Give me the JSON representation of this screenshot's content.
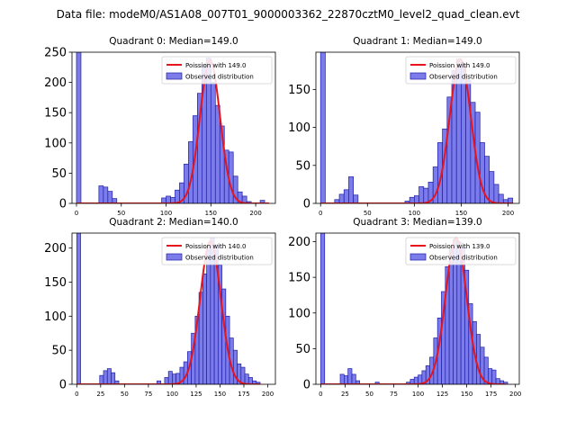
{
  "figure": {
    "title": "Data file: modeM0/AS1A08_007T01_9000003362_22870cztM0_level2_quad_clean.evt"
  },
  "colors": {
    "bar_fill": "#7b7bea",
    "bar_edge": "#1f1fa8",
    "poisson_line": "#e8141c",
    "axes": "#000000"
  },
  "chart_data": [
    {
      "type": "bar",
      "title": "Quadrant 0: Median=149.0",
      "xlim": [
        -5,
        222
      ],
      "ylim": [
        0,
        250
      ],
      "xticks": [
        0,
        50,
        100,
        150,
        200
      ],
      "yticks": [
        0,
        50,
        100,
        150,
        200,
        250
      ],
      "bin_width": 5,
      "bins": [
        [
          0,
          250
        ],
        [
          25,
          29
        ],
        [
          30,
          27
        ],
        [
          35,
          20
        ],
        [
          40,
          8
        ],
        [
          95,
          9
        ],
        [
          100,
          12
        ],
        [
          105,
          10
        ],
        [
          110,
          22
        ],
        [
          115,
          34
        ],
        [
          120,
          65
        ],
        [
          125,
          102
        ],
        [
          130,
          145
        ],
        [
          135,
          182
        ],
        [
          140,
          230
        ],
        [
          145,
          240
        ],
        [
          150,
          200
        ],
        [
          155,
          162
        ],
        [
          160,
          128
        ],
        [
          165,
          88
        ],
        [
          170,
          85
        ],
        [
          175,
          45
        ],
        [
          180,
          19
        ],
        [
          185,
          12
        ],
        [
          190,
          3
        ],
        [
          205,
          5
        ]
      ],
      "poisson": {
        "mean": 149,
        "peak": 237,
        "sigma": 11.2,
        "x_from": 0,
        "x_to": 215
      },
      "legend": {
        "line": "Poission with 149.0",
        "bars": "Observed distribution",
        "position": "upper right"
      }
    },
    {
      "type": "bar",
      "title": "Quadrant 1: Median=149.0",
      "xlim": [
        -5,
        212
      ],
      "ylim": [
        0,
        199
      ],
      "xticks": [
        0,
        50,
        100,
        150,
        200
      ],
      "yticks": [
        0,
        50,
        100,
        150
      ],
      "bin_width": 5,
      "bins": [
        [
          0,
          199
        ],
        [
          15,
          5
        ],
        [
          20,
          12
        ],
        [
          25,
          18
        ],
        [
          30,
          35
        ],
        [
          35,
          11
        ],
        [
          90,
          3
        ],
        [
          95,
          8
        ],
        [
          100,
          10
        ],
        [
          105,
          22
        ],
        [
          110,
          20
        ],
        [
          115,
          28
        ],
        [
          120,
          48
        ],
        [
          125,
          80
        ],
        [
          130,
          98
        ],
        [
          135,
          140
        ],
        [
          140,
          175
        ],
        [
          145,
          190
        ],
        [
          150,
          183
        ],
        [
          155,
          162
        ],
        [
          160,
          133
        ],
        [
          165,
          120
        ],
        [
          170,
          80
        ],
        [
          175,
          62
        ],
        [
          180,
          42
        ],
        [
          185,
          25
        ],
        [
          190,
          12
        ],
        [
          195,
          5
        ],
        [
          200,
          7
        ]
      ],
      "poisson": {
        "mean": 149,
        "peak": 190,
        "sigma": 11.2,
        "x_from": 0,
        "x_to": 205
      },
      "legend": {
        "line": "Poission with 149.0",
        "bars": "Observed distribution",
        "position": "upper right"
      }
    },
    {
      "type": "bar",
      "title": "Quadrant 2: Median=140.0",
      "xlim": [
        -5,
        208
      ],
      "ylim": [
        0,
        222
      ],
      "xticks": [
        0,
        25,
        50,
        75,
        100,
        125,
        150,
        175,
        200
      ],
      "yticks": [
        0,
        50,
        100,
        150,
        200
      ],
      "bin_width": 4,
      "bins": [
        [
          0,
          222
        ],
        [
          24,
          13
        ],
        [
          28,
          20
        ],
        [
          32,
          23
        ],
        [
          36,
          17
        ],
        [
          40,
          5
        ],
        [
          84,
          5
        ],
        [
          92,
          10
        ],
        [
          96,
          19
        ],
        [
          100,
          15
        ],
        [
          104,
          16
        ],
        [
          108,
          25
        ],
        [
          112,
          33
        ],
        [
          116,
          48
        ],
        [
          120,
          75
        ],
        [
          124,
          100
        ],
        [
          128,
          135
        ],
        [
          132,
          162
        ],
        [
          136,
          198
        ],
        [
          140,
          215
        ],
        [
          144,
          205
        ],
        [
          148,
          175
        ],
        [
          152,
          140
        ],
        [
          156,
          100
        ],
        [
          160,
          68
        ],
        [
          164,
          50
        ],
        [
          168,
          30
        ],
        [
          172,
          25
        ],
        [
          176,
          15
        ],
        [
          180,
          10
        ],
        [
          184,
          5
        ],
        [
          188,
          3
        ]
      ],
      "poisson": {
        "mean": 140,
        "peak": 210,
        "sigma": 10.8,
        "x_from": 0,
        "x_to": 192
      },
      "legend": {
        "line": "Poission with 140.0",
        "bars": "Observed distribution",
        "position": "upper right"
      }
    },
    {
      "type": "bar",
      "title": "Quadrant 3: Median=139.0",
      "xlim": [
        -5,
        204
      ],
      "ylim": [
        0,
        212
      ],
      "xticks": [
        0,
        25,
        50,
        75,
        100,
        125,
        150,
        175,
        200
      ],
      "yticks": [
        0,
        50,
        100,
        150,
        200
      ],
      "bin_width": 4,
      "bins": [
        [
          0,
          212
        ],
        [
          20,
          14
        ],
        [
          24,
          12
        ],
        [
          28,
          22
        ],
        [
          32,
          14
        ],
        [
          36,
          5
        ],
        [
          56,
          3
        ],
        [
          88,
          3
        ],
        [
          92,
          7
        ],
        [
          96,
          10
        ],
        [
          100,
          13
        ],
        [
          104,
          19
        ],
        [
          108,
          26
        ],
        [
          112,
          38
        ],
        [
          116,
          65
        ],
        [
          120,
          93
        ],
        [
          124,
          130
        ],
        [
          128,
          165
        ],
        [
          132,
          190
        ],
        [
          136,
          203
        ],
        [
          140,
          200
        ],
        [
          144,
          192
        ],
        [
          148,
          160
        ],
        [
          152,
          113
        ],
        [
          156,
          88
        ],
        [
          160,
          70
        ],
        [
          164,
          52
        ],
        [
          168,
          38
        ],
        [
          172,
          22
        ],
        [
          176,
          20
        ],
        [
          180,
          8
        ],
        [
          184,
          5
        ],
        [
          188,
          3
        ]
      ],
      "poisson": {
        "mean": 139,
        "peak": 205,
        "sigma": 10.8,
        "x_from": 0,
        "x_to": 190
      },
      "legend": {
        "line": "Poission with 139.0",
        "bars": "Observed distribution",
        "position": "upper right"
      }
    }
  ]
}
